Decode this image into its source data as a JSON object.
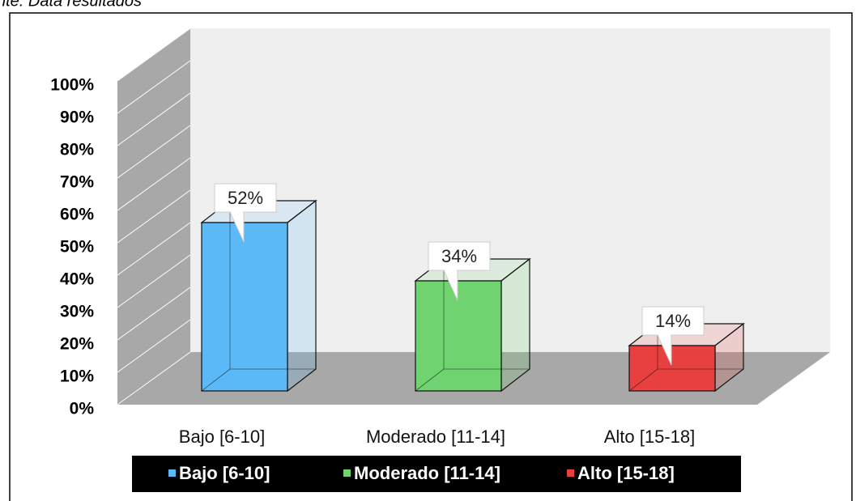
{
  "chart_data": {
    "type": "bar3d",
    "source": "nte: Data resultados",
    "categories": [
      "Bajo [6-10]",
      "Moderado [11-14]",
      "Alto [15-18]"
    ],
    "values": [
      52,
      34,
      14
    ],
    "value_labels": [
      "52%",
      "34%",
      "14%"
    ],
    "colors": [
      "#5ab9f6",
      "#6fd46f",
      "#e8403f"
    ],
    "ylim": [
      0,
      100
    ],
    "yticks": [
      {
        "value": 0,
        "label": "0%"
      },
      {
        "value": 10,
        "label": "10%"
      },
      {
        "value": 20,
        "label": "20%"
      },
      {
        "value": 30,
        "label": "30%"
      },
      {
        "value": 40,
        "label": "40%"
      },
      {
        "value": 50,
        "label": "50%"
      },
      {
        "value": 60,
        "label": "60%"
      },
      {
        "value": 70,
        "label": "70%"
      },
      {
        "value": 80,
        "label": "80%"
      },
      {
        "value": 90,
        "label": "90%"
      },
      {
        "value": 100,
        "label": "100%"
      }
    ],
    "grid": true,
    "legend": "bottom"
  }
}
